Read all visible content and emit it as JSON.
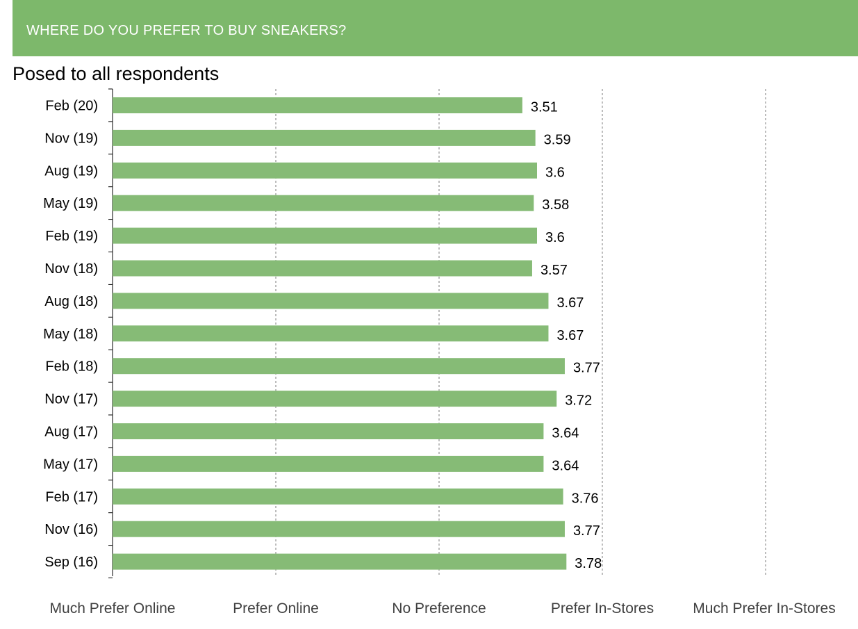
{
  "header": {
    "title": "WHERE DO YOU PREFER TO BUY SNEAKERS?",
    "subtitle": "Posed to all respondents"
  },
  "colors": {
    "banner": "#7db86b",
    "bar": "#86bb76",
    "gridline": "#9a9a9a",
    "axis": "#000000"
  },
  "chart_data": {
    "type": "bar",
    "orientation": "horizontal",
    "title": "WHERE DO YOU PREFER TO BUY SNEAKERS?",
    "subtitle": "Posed to all respondents",
    "xlim": [
      1,
      5
    ],
    "grid": "vertical dashed at 2, 3, 4, 5",
    "x_tick_values": [
      1,
      2,
      3,
      4,
      5
    ],
    "x_tick_labels": [
      "Much Prefer Online",
      "Prefer Online",
      "No Preference",
      "Prefer In-Stores",
      "Much Prefer In-Stores"
    ],
    "categories": [
      "Feb (20)",
      "Nov (19)",
      "Aug (19)",
      "May (19)",
      "Feb (19)",
      "Nov (18)",
      "Aug (18)",
      "May (18)",
      "Feb (18)",
      "Nov (17)",
      "Aug (17)",
      "May (17)",
      "Feb (17)",
      "Nov (16)",
      "Sep (16)"
    ],
    "values": [
      3.51,
      3.59,
      3.6,
      3.58,
      3.6,
      3.57,
      3.67,
      3.67,
      3.77,
      3.72,
      3.64,
      3.64,
      3.76,
      3.77,
      3.78
    ],
    "data_labels": [
      "3.51",
      "3.59",
      "3.6",
      "3.58",
      "3.6",
      "3.57",
      "3.67",
      "3.67",
      "3.77",
      "3.72",
      "3.64",
      "3.64",
      "3.76",
      "3.77",
      "3.78"
    ]
  }
}
